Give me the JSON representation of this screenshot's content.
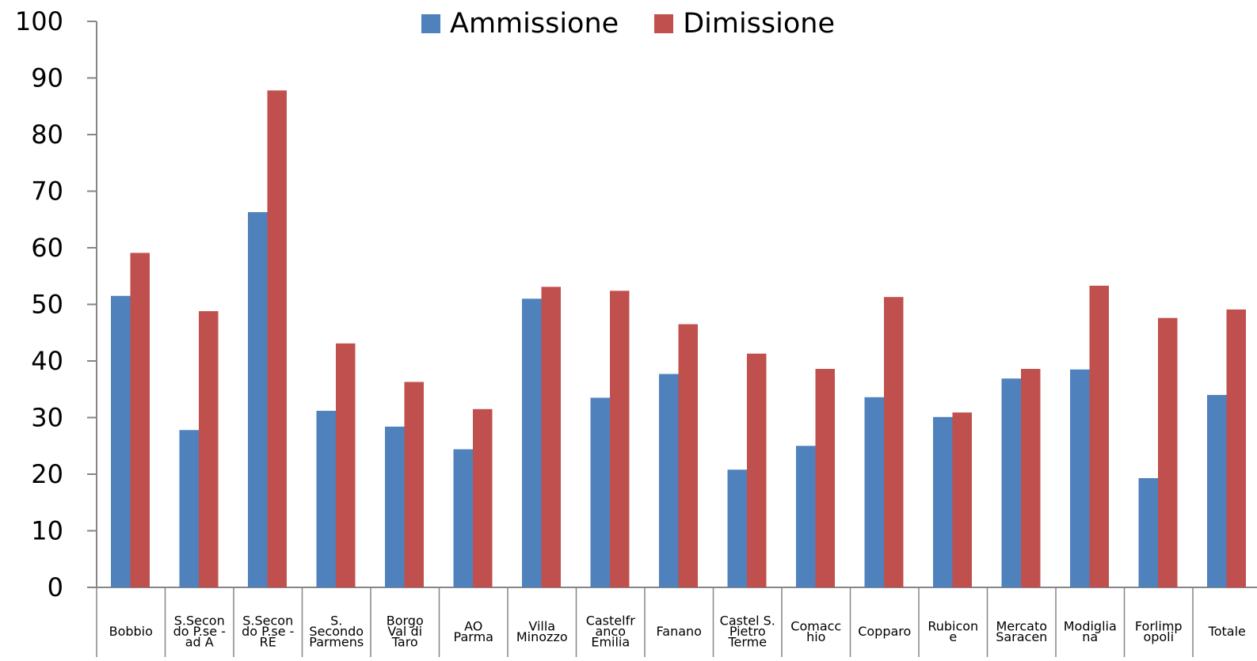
{
  "chart_data": {
    "type": "bar",
    "title": "",
    "xlabel": "",
    "ylabel": "",
    "ylim": [
      0,
      100
    ],
    "yticks": [
      0,
      10,
      20,
      30,
      40,
      50,
      60,
      70,
      80,
      90,
      100
    ],
    "grid": false,
    "legend_position": "top-center",
    "categories": [
      [
        "Bobbio"
      ],
      [
        "S.Secon",
        "do P.se -",
        "ad A"
      ],
      [
        "S.Secon",
        "do P.se -",
        "RE"
      ],
      [
        "S.",
        "Secondo",
        "Parmens"
      ],
      [
        "Borgo",
        "Val di",
        "Taro"
      ],
      [
        "AO",
        "Parma"
      ],
      [
        "Villa",
        "Minozzo"
      ],
      [
        "Castelfr",
        "anco",
        "Emilia"
      ],
      [
        "Fanano"
      ],
      [
        "Castel S.",
        "Pietro",
        "Terme"
      ],
      [
        "Comacc",
        "hio"
      ],
      [
        "Copparo"
      ],
      [
        "Rubicon",
        "e"
      ],
      [
        "Mercato",
        "Saracen"
      ],
      [
        "Modiglia",
        "na"
      ],
      [
        "Forlimp",
        "opoli"
      ],
      [
        "Totale"
      ]
    ],
    "series": [
      {
        "name": "Ammissione",
        "color": "#4F81BD",
        "values": [
          51.5,
          27.8,
          66.3,
          31.2,
          28.4,
          24.4,
          51.0,
          33.5,
          37.7,
          20.8,
          25.0,
          33.6,
          30.1,
          36.9,
          38.5,
          19.3,
          34.0
        ]
      },
      {
        "name": "Dimissione",
        "color": "#C0504D",
        "values": [
          59.1,
          48.8,
          87.8,
          43.1,
          36.3,
          31.5,
          53.1,
          52.4,
          46.5,
          41.3,
          38.6,
          51.3,
          30.9,
          38.6,
          53.3,
          47.6,
          49.1
        ]
      }
    ]
  }
}
